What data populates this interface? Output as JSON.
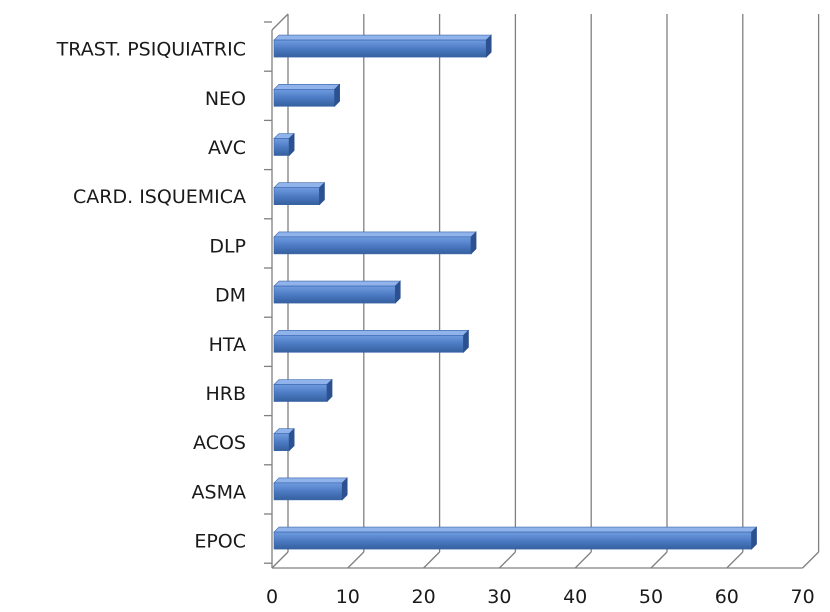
{
  "chart_data": {
    "type": "bar",
    "orientation": "horizontal",
    "style": "3d",
    "title": "",
    "xlabel": "",
    "ylabel": "",
    "categories": [
      "EPOC",
      "ASMA",
      "ACOS",
      "HRB",
      "HTA",
      "DM",
      "DLP",
      "CARD. ISQUEMICA",
      "AVC",
      "NEO",
      "TRAST. PSIQUIATRIC"
    ],
    "values": [
      63,
      9,
      2,
      7,
      25,
      16,
      26,
      6,
      2,
      8,
      28
    ],
    "xlim": [
      0,
      70
    ],
    "xticks": [
      0,
      10,
      20,
      30,
      40,
      50,
      60,
      70
    ],
    "grid": "vertical",
    "bar_color": "#4a78c0"
  }
}
